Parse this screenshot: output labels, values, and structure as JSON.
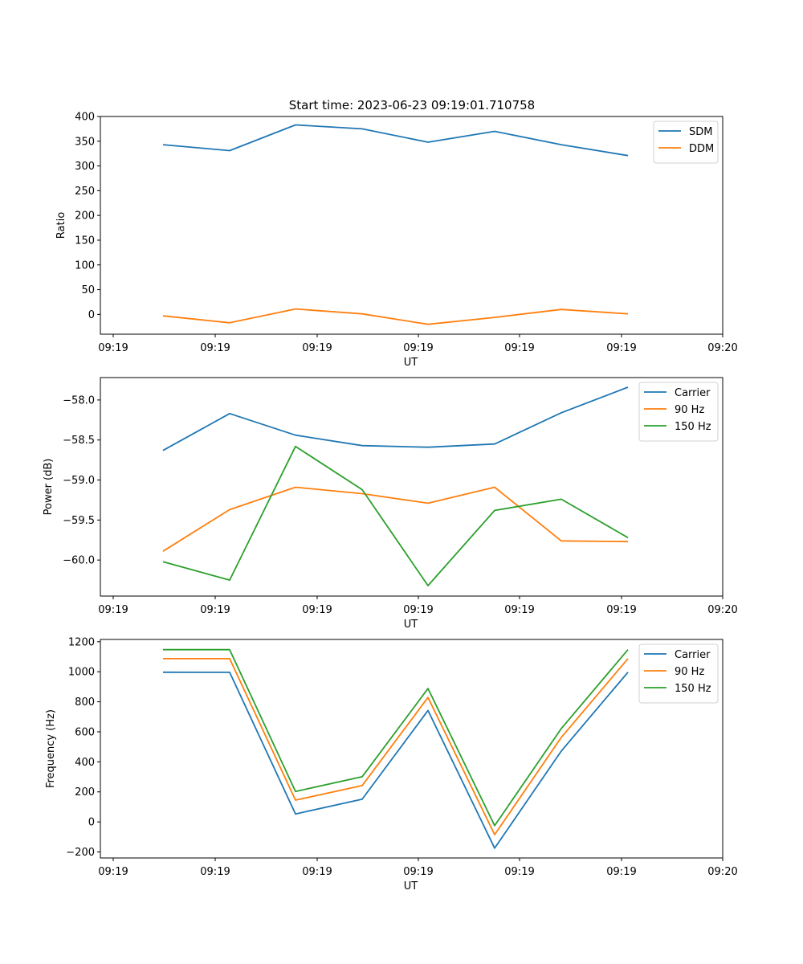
{
  "figure_title": "Start time: 2023-06-23 09:19:01.710758",
  "colors": {
    "blue": "#1f77b4",
    "orange": "#ff7f0e",
    "green": "#2ca02c"
  },
  "chart_data": [
    {
      "type": "line",
      "xlabel": "UT",
      "ylabel": "Ratio",
      "xtick_labels": [
        "09:19",
        "09:19",
        "09:19",
        "09:19",
        "09:19",
        "09:19",
        "09:19",
        "09:20"
      ],
      "ylim": [
        -40,
        400
      ],
      "yticks": [
        0,
        50,
        100,
        150,
        200,
        250,
        300,
        350,
        400
      ],
      "ytick_labels": [
        "0",
        "50",
        "100",
        "150",
        "200",
        "250",
        "300",
        "350",
        "400"
      ],
      "legend_position": "top-right",
      "series": [
        {
          "name": "SDM",
          "color": "#1f77b4",
          "values": [
            343,
            331,
            383,
            375,
            348,
            370,
            343,
            321
          ]
        },
        {
          "name": "DDM",
          "color": "#ff7f0e",
          "values": [
            -3,
            -17,
            11,
            1,
            -20,
            -6,
            10,
            1
          ]
        }
      ]
    },
    {
      "type": "line",
      "xlabel": "UT",
      "ylabel": "Power (dB)",
      "xtick_labels": [
        "09:19",
        "09:19",
        "09:19",
        "09:19",
        "09:19",
        "09:19",
        "09:19",
        "09:20"
      ],
      "ylim": [
        -60.45,
        -57.72
      ],
      "yticks": [
        -60.0,
        -59.5,
        -59.0,
        -58.5,
        -58.0
      ],
      "ytick_labels": [
        "−60.0",
        "−59.5",
        "−59.0",
        "−58.5",
        "−58.0"
      ],
      "legend_position": "top-right",
      "series": [
        {
          "name": "Carrier",
          "color": "#1f77b4",
          "values": [
            -58.63,
            -58.17,
            -58.44,
            -58.57,
            -58.59,
            -58.55,
            -58.16,
            -57.84
          ]
        },
        {
          "name": "90 Hz",
          "color": "#ff7f0e",
          "values": [
            -59.89,
            -59.37,
            -59.09,
            -59.17,
            -59.29,
            -59.09,
            -59.76,
            -59.77
          ]
        },
        {
          "name": "150 Hz",
          "color": "#2ca02c",
          "values": [
            -60.02,
            -60.25,
            -58.58,
            -59.12,
            -60.32,
            -59.38,
            -59.24,
            -59.72
          ]
        }
      ]
    },
    {
      "type": "line",
      "xlabel": "UT",
      "ylabel": "Frequency (Hz)",
      "xtick_labels": [
        "09:19",
        "09:19",
        "09:19",
        "09:19",
        "09:19",
        "09:19",
        "09:19",
        "09:20"
      ],
      "ylim": [
        -240,
        1215
      ],
      "yticks": [
        -200,
        0,
        200,
        400,
        600,
        800,
        1000,
        1200
      ],
      "ytick_labels": [
        "−200",
        "0",
        "200",
        "400",
        "600",
        "800",
        "1000",
        "1200"
      ],
      "legend_position": "top-right",
      "series": [
        {
          "name": "Carrier",
          "color": "#1f77b4",
          "values": [
            997,
            996,
            53,
            151,
            742,
            -175,
            472,
            997
          ]
        },
        {
          "name": "90 Hz",
          "color": "#ff7f0e",
          "values": [
            1087,
            1087,
            145,
            242,
            829,
            -85,
            563,
            1087
          ]
        },
        {
          "name": "150 Hz",
          "color": "#2ca02c",
          "values": [
            1147,
            1147,
            203,
            301,
            888,
            -25,
            622,
            1147
          ]
        }
      ]
    }
  ]
}
